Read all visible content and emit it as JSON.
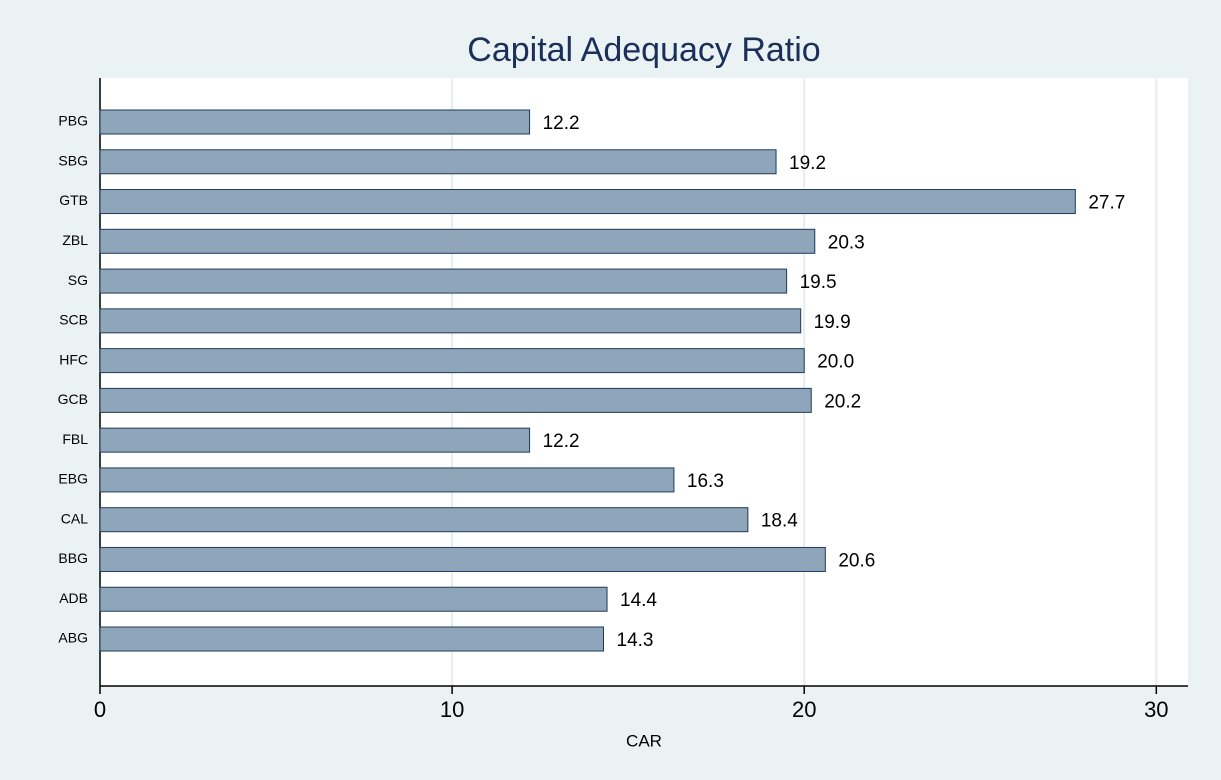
{
  "chart_data": {
    "type": "barh",
    "title": "Capital Adequacy Ratio",
    "xlabel": "CAR",
    "categories": [
      "PBG",
      "SBG",
      "GTB",
      "ZBL",
      "SG",
      "SCB",
      "HFC",
      "GCB",
      "FBL",
      "EBG",
      "CAL",
      "BBG",
      "ADB",
      "ABG"
    ],
    "values": [
      12.2,
      19.2,
      27.7,
      20.3,
      19.5,
      19.9,
      20.0,
      20.2,
      12.2,
      16.3,
      18.4,
      20.6,
      14.4,
      14.3
    ],
    "value_labels": [
      "12.2",
      "19.2",
      "27.7",
      "20.3",
      "19.5",
      "19.9",
      "20.0",
      "20.2",
      "12.2",
      "16.3",
      "18.4",
      "20.6",
      "14.4",
      "14.3"
    ],
    "color": "#8ea5ba",
    "xlim": [
      0,
      30.9
    ],
    "xticks": [
      0,
      10,
      20,
      30
    ],
    "grid": true
  }
}
